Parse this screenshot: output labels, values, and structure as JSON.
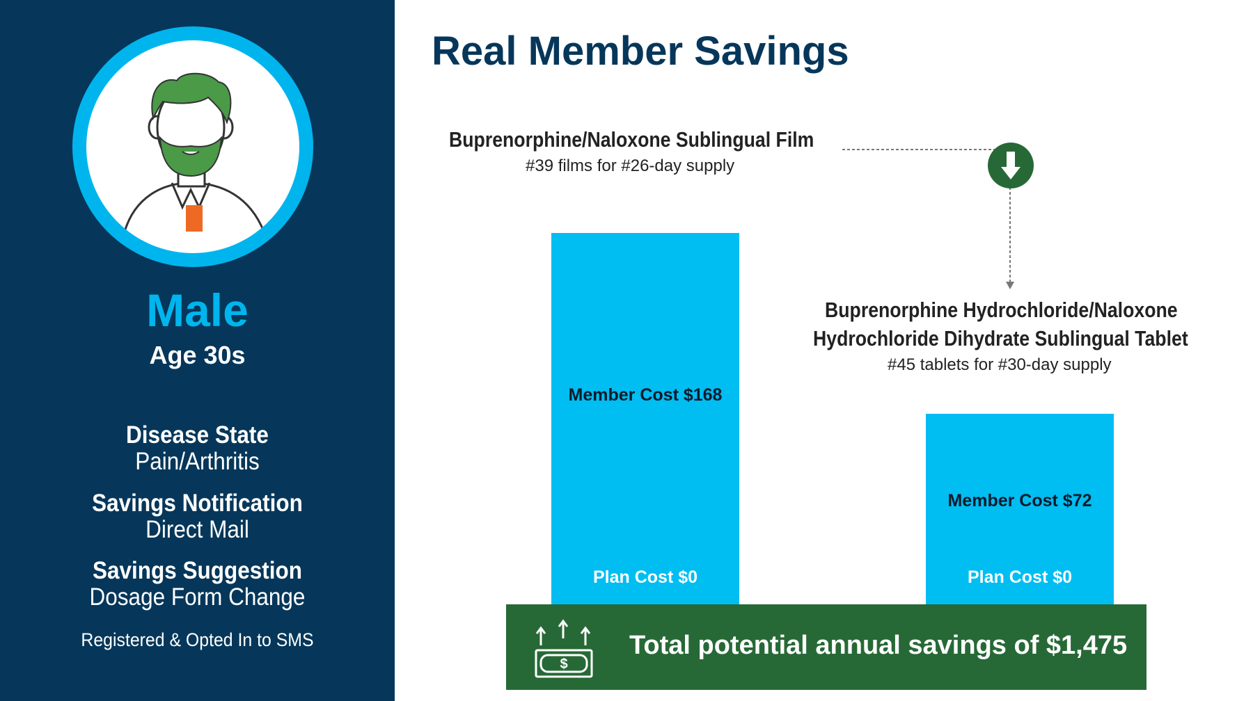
{
  "profile": {
    "gender": "Male",
    "age": "Age 30s",
    "details": [
      {
        "label": "Disease State",
        "value": "Pain/Arthritis"
      },
      {
        "label": "Savings Notification",
        "value": "Direct Mail"
      },
      {
        "label": "Savings Suggestion",
        "value": "Dosage Form Change"
      }
    ],
    "sms_status": "Registered & Opted In to SMS"
  },
  "colors": {
    "sidebar": "#06375a",
    "accent_blue": "#00b5ee",
    "bar_blue": "#00bdf2",
    "green": "#276936"
  },
  "main_title": "Real Member Savings",
  "chart_data": {
    "type": "bar",
    "categories": [
      "Buprenorphine/Naloxone Sublingual Film",
      "Buprenorphine Hydrochloride/Naloxone Hydrochloride Dihydrate Sublingual Tablet"
    ],
    "drugs": [
      {
        "title_lines": [
          "Buprenorphine/Naloxone Sublingual Film"
        ],
        "supply": "#39 films for #26-day supply",
        "member_cost": 168,
        "plan_cost": 0,
        "member_label": "Member Cost $168",
        "plan_label": "Plan Cost $0"
      },
      {
        "title_lines": [
          "Buprenorphine Hydrochloride/Naloxone",
          "Hydrochloride Dihydrate Sublingual Tablet"
        ],
        "supply": "#45 tablets for #30-day supply",
        "member_cost": 72,
        "plan_cost": 0,
        "member_label": "Member Cost $72",
        "plan_label": "Plan Cost $0"
      }
    ],
    "series": [
      {
        "name": "Member Cost",
        "values": [
          168,
          72
        ]
      },
      {
        "name": "Plan Cost",
        "values": [
          0,
          0
        ]
      }
    ]
  },
  "savings_banner": {
    "text": "Total potential annual savings of $1,475",
    "icon": "money-savings-icon"
  },
  "switch_icon": "down-arrow-icon"
}
